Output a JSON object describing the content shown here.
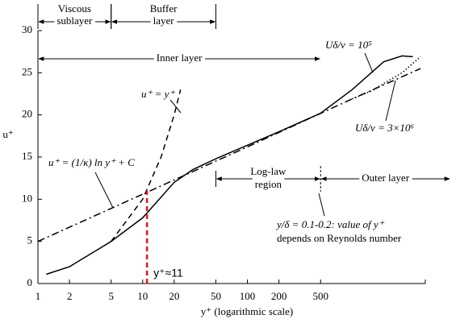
{
  "chart_data": {
    "type": "line",
    "xlabel": "y⁺  (logarithmic scale)",
    "ylabel": "u⁺",
    "xscale": "log",
    "grid": false,
    "xlim": [
      1,
      5000
    ],
    "ylim": [
      0,
      30
    ],
    "xticks": [
      1,
      2,
      5,
      10,
      20,
      50,
      100,
      200,
      500
    ],
    "yticks": [
      0,
      5,
      10,
      15,
      20,
      25,
      30
    ],
    "series": [
      {
        "dash": "solid",
        "color": "#000000",
        "x": [
          1.2,
          2,
          5,
          10,
          20,
          30,
          50,
          100,
          200,
          500,
          1000,
          2000,
          3000,
          3800
        ],
        "values": [
          1.1,
          2,
          5,
          7.8,
          12,
          13.5,
          14.8,
          16.4,
          18,
          20.2,
          23,
          26.3,
          27,
          26.9
        ]
      },
      {
        "dash": "dot",
        "color": "#000000",
        "x": [
          1000,
          1500,
          3000,
          4500
        ],
        "values": [
          21.9,
          22.8,
          25,
          26.9
        ]
      },
      {
        "dash": "dash",
        "color": "#000000",
        "x": [
          5,
          10,
          15,
          20,
          23
        ],
        "values": [
          5,
          10,
          15,
          20,
          23
        ]
      },
      {
        "dash": "dashdot",
        "color": "#000000",
        "x": [
          1,
          10,
          100,
          1000,
          4500
        ],
        "values": [
          5,
          10.6,
          16.2,
          21.9,
          25.5
        ]
      }
    ],
    "marker": {
      "x": 11,
      "y": 11,
      "label": "y⁺≈11",
      "color": "#e8141c"
    },
    "regions": [
      {
        "lines": [
          "Viscous",
          "sublayer"
        ],
        "span": [
          1,
          5
        ]
      },
      {
        "lines": [
          "Buffer",
          "layer"
        ],
        "span": [
          5,
          50
        ]
      },
      {
        "lines": [
          "Inner layer"
        ],
        "span": [
          1,
          500
        ]
      },
      {
        "lines": [
          "Log-law",
          "region"
        ],
        "span": [
          50,
          500
        ]
      },
      {
        "lines": [
          "Outer layer"
        ],
        "span": [
          500,
          null
        ]
      }
    ],
    "annotations": [
      {
        "text": "u⁺ = y⁺"
      },
      {
        "text": "u⁺ = (1/κ) ln y⁺ + C"
      },
      {
        "text": "Uδ/ν = 10⁵"
      },
      {
        "text": "Uδ/ν = 3×10⁶"
      },
      {
        "text": "y/δ = 0.1-0.2:  value of y⁺"
      },
      {
        "text": "depends on Reynolds number"
      }
    ]
  }
}
